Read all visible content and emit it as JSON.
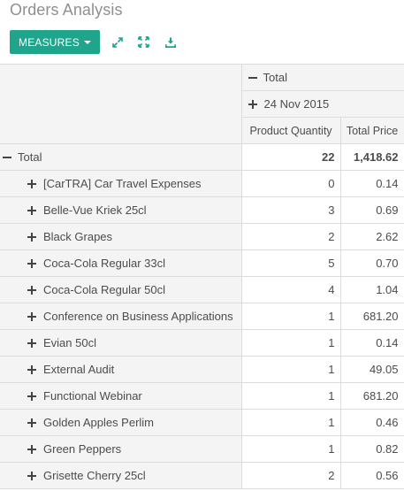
{
  "page": {
    "title": "Orders Analysis"
  },
  "toolbar": {
    "measures_label": "MEASURES",
    "icons": [
      "expand-icon",
      "fullscreen-icon",
      "download-icon"
    ],
    "accent_color": "#1fa58b"
  },
  "pivot": {
    "col_header_total": "Total",
    "col_header_date": "24 Nov 2015",
    "measures": [
      "Product Quantity",
      "Total Price"
    ],
    "total_row": {
      "label": "Total",
      "quantity": "22",
      "price": "1,418.62"
    },
    "rows": [
      {
        "label": "[CarTRA] Car Travel Expenses",
        "quantity": "0",
        "price": "0.14"
      },
      {
        "label": "Belle-Vue Kriek 25cl",
        "quantity": "3",
        "price": "0.69"
      },
      {
        "label": "Black Grapes",
        "quantity": "2",
        "price": "2.62"
      },
      {
        "label": "Coca-Cola Regular 33cl",
        "quantity": "5",
        "price": "0.70"
      },
      {
        "label": "Coca-Cola Regular 50cl",
        "quantity": "4",
        "price": "1.04"
      },
      {
        "label": "Conference on Business Applications",
        "quantity": "1",
        "price": "681.20"
      },
      {
        "label": "Evian 50cl",
        "quantity": "1",
        "price": "0.14"
      },
      {
        "label": "External Audit",
        "quantity": "1",
        "price": "49.05"
      },
      {
        "label": "Functional Webinar",
        "quantity": "1",
        "price": "681.20"
      },
      {
        "label": "Golden Apples Perlim",
        "quantity": "1",
        "price": "0.46"
      },
      {
        "label": "Green Peppers",
        "quantity": "1",
        "price": "0.82"
      },
      {
        "label": "Grisette Cherry 25cl",
        "quantity": "2",
        "price": "0.56"
      }
    ]
  }
}
